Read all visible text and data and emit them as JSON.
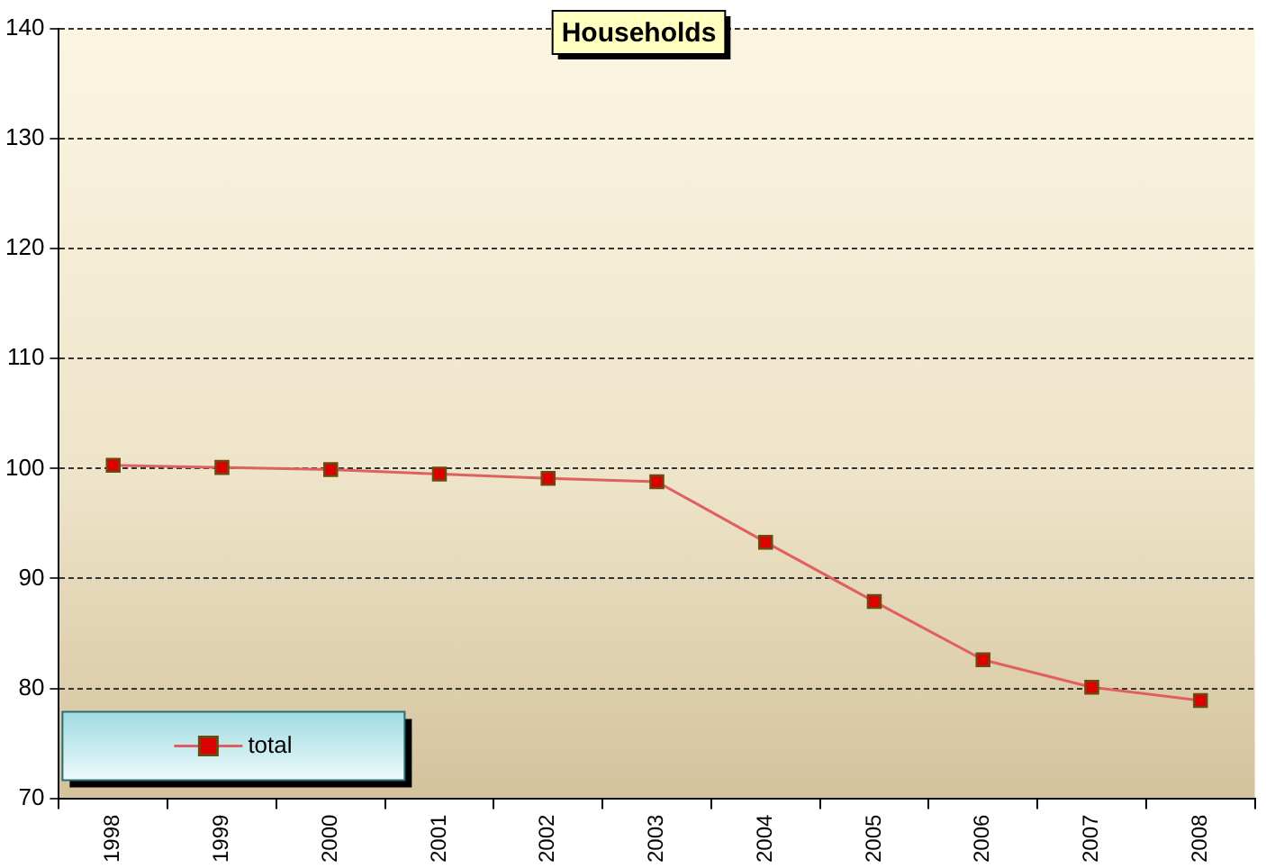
{
  "chart_data": {
    "type": "line",
    "title": "Households",
    "categories": [
      "1998",
      "1999",
      "2000",
      "2001",
      "2002",
      "2003",
      "2004",
      "2005",
      "2006",
      "2007",
      "2008"
    ],
    "series": [
      {
        "name": "total",
        "color": "#e06060",
        "values": [
          100.3,
          100.1,
          99.9,
          99.5,
          99.1,
          98.8,
          93.3,
          87.9,
          82.6,
          80.1,
          78.9
        ]
      }
    ],
    "ylim": [
      70,
      140
    ],
    "yticks": [
      70,
      80,
      90,
      100,
      110,
      120,
      130,
      140
    ],
    "grid": "y",
    "legend": "bottom left",
    "marker": "square",
    "line_style": "solid"
  }
}
